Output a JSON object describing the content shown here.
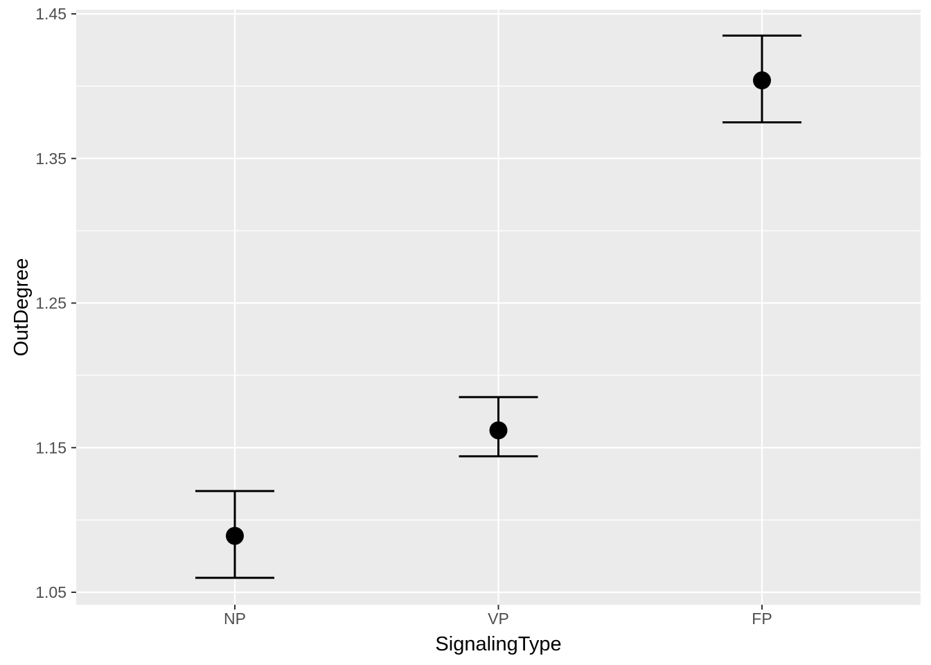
{
  "figure": {
    "background_color": "#FFFFFF"
  },
  "chart_data": {
    "type": "scatter",
    "subtype": "point-with-error-bars",
    "title": "",
    "xlabel": "SignalingType",
    "ylabel": "OutDegree",
    "categories": [
      "NP",
      "VP",
      "FP"
    ],
    "series": [
      {
        "name": "OutDegree",
        "values": [
          1.089,
          1.162,
          1.404
        ],
        "ci_low": [
          1.06,
          1.144,
          1.375
        ],
        "ci_high": [
          1.12,
          1.185,
          1.435
        ]
      }
    ],
    "y_ticks": [
      1.05,
      1.15,
      1.25,
      1.35,
      1.45
    ],
    "y_tick_labels": [
      "1.05",
      "1.15",
      "1.25",
      "1.35",
      "1.45"
    ],
    "y_minor_ticks": [
      1.1,
      1.2,
      1.3,
      1.4
    ],
    "ylim": [
      1.041,
      1.454
    ],
    "grid": "on",
    "legend": "none",
    "style": {
      "panel_bg": "#EBEBEB",
      "grid_major_color": "#FFFFFF",
      "grid_minor_color": "#FFFFFF",
      "point_color": "#000000",
      "errorbar_color": "#000000",
      "tick_mark_color": "#333333",
      "tick_label_color": "#4D4D4D",
      "axis_title_color": "#000000"
    }
  }
}
